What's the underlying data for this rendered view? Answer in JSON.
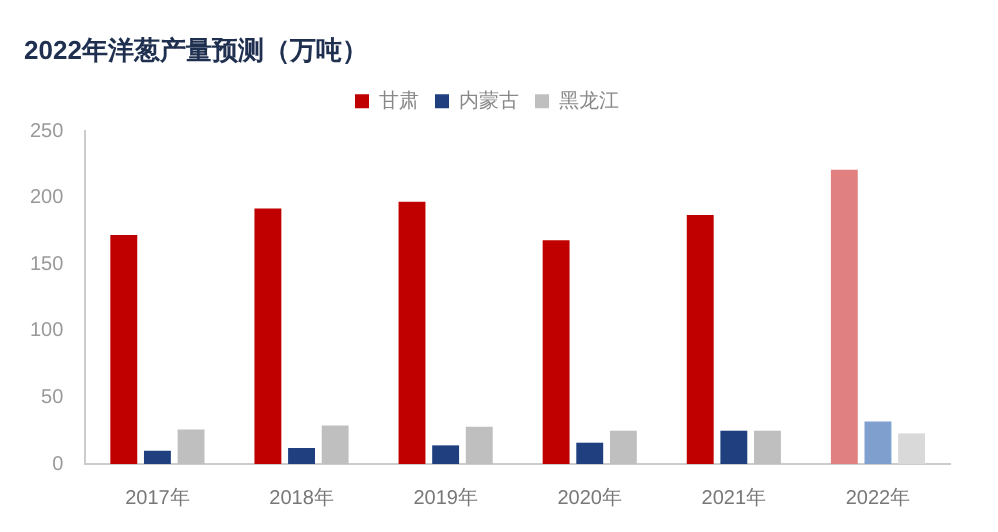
{
  "chart_data": {
    "type": "bar",
    "title": "2022年洋葱产量预测（万吨）",
    "categories": [
      "2017年",
      "2018年",
      "2019年",
      "2020年",
      "2021年",
      "2022年"
    ],
    "series": [
      {
        "name": "甘肃",
        "color": "#c00000",
        "colors": [
          "#c00000",
          "#c00000",
          "#c00000",
          "#c00000",
          "#c00000",
          "#e08080"
        ],
        "values": [
          172,
          192,
          197,
          168,
          187,
          221
        ]
      },
      {
        "name": "内蒙古",
        "color": "#1f3f7f",
        "colors": [
          "#1f3f7f",
          "#1f3f7f",
          "#1f3f7f",
          "#1f3f7f",
          "#1f3f7f",
          "#7f9fcf"
        ],
        "values": [
          10,
          12,
          14,
          16,
          25,
          32
        ]
      },
      {
        "name": "黑龙江",
        "color": "#bfbfbf",
        "colors": [
          "#bfbfbf",
          "#bfbfbf",
          "#bfbfbf",
          "#bfbfbf",
          "#bfbfbf",
          "#d9d9d9"
        ],
        "values": [
          26,
          29,
          28,
          25,
          25,
          23
        ]
      }
    ],
    "ylim": [
      0,
      250
    ],
    "yticks": [
      0,
      50,
      100,
      150,
      200,
      250
    ],
    "grid": false,
    "legend": "top"
  }
}
